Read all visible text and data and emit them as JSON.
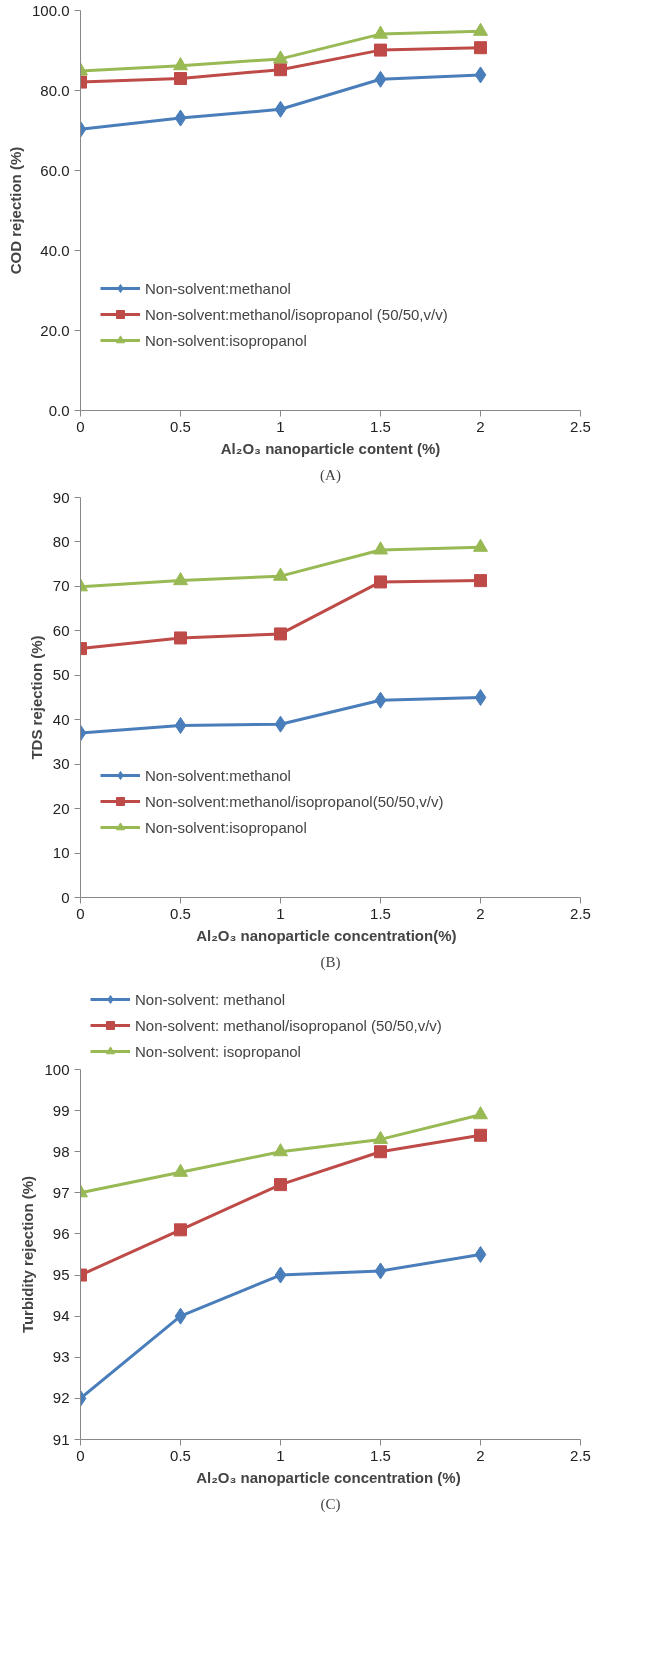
{
  "chart_data": [
    {
      "type": "line",
      "ylabel": "COD rejection (%)",
      "xlabel": "Al₂O₃ nanoparticle content (%)",
      "annotations": [
        "(A)"
      ],
      "x": [
        0,
        0.5,
        1,
        1.5,
        2
      ],
      "xlim": [
        0,
        2.5
      ],
      "xticks": [
        0,
        0.5,
        1,
        1.5,
        2,
        2.5
      ],
      "ylim": [
        0,
        100
      ],
      "yticks": [
        {
          "value": 0,
          "label": "0.0"
        },
        {
          "value": 20,
          "label": "20.0"
        },
        {
          "value": 40,
          "label": "40.0"
        },
        {
          "value": 60,
          "label": "60.0"
        },
        {
          "value": 80,
          "label": "80.0"
        },
        {
          "value": 100,
          "label": "100.0"
        }
      ],
      "grid": false,
      "legend": "bottom left",
      "line_style": "solid",
      "series": [
        {
          "name": "Non-solvent:methanol",
          "color": "#4a7ebb",
          "marker": "diamond",
          "values": [
            70.3,
            73.1,
            75.3,
            82.8,
            83.9
          ]
        },
        {
          "name": "Non-solvent:methanol/isopropanol (50/50,v/v)",
          "color": "#be4b48",
          "marker": "square",
          "values": [
            82.1,
            83.0,
            85.2,
            90.1,
            90.7
          ]
        },
        {
          "name": "Non-solvent:isopropanol",
          "color": "#98b954",
          "marker": "triangle",
          "values": [
            84.9,
            86.2,
            87.9,
            94.1,
            94.8
          ]
        }
      ]
    },
    {
      "type": "line",
      "ylabel": "TDS rejection (%)",
      "xlabel": "Al₂O₃   nanoparticle concentration(%)",
      "annotations": [
        "(B)"
      ],
      "x": [
        0,
        0.5,
        1,
        1.5,
        2
      ],
      "xlim": [
        0,
        2.5
      ],
      "xticks": [
        0,
        0.5,
        1,
        1.5,
        2,
        2.5
      ],
      "ylim": [
        0,
        90
      ],
      "yticks": [
        0,
        10,
        20,
        30,
        40,
        50,
        60,
        70,
        80,
        90
      ],
      "grid": false,
      "legend": "bottom left",
      "line_style": "solid",
      "series": [
        {
          "name": "Non-solvent:methanol",
          "color": "#4a7ebb",
          "marker": "diamond",
          "values": [
            37.0,
            38.7,
            39.0,
            44.4,
            45.0
          ]
        },
        {
          "name": "Non-solvent:methanol/isopropanol(50/50,v/v)",
          "color": "#be4b48",
          "marker": "square",
          "values": [
            56.0,
            58.4,
            59.3,
            71.0,
            71.3
          ]
        },
        {
          "name": "Non-solvent:isopropanol",
          "color": "#98b954",
          "marker": "triangle",
          "values": [
            69.9,
            71.3,
            72.3,
            78.2,
            78.8
          ]
        }
      ]
    },
    {
      "type": "line",
      "ylabel": "Turbidity rejection (%)",
      "xlabel": "Al₂O₃  nanoparticle concentration (%)",
      "annotations": [
        "(C)"
      ],
      "x": [
        0,
        0.5,
        1,
        1.5,
        2
      ],
      "xlim": [
        0,
        2.5
      ],
      "xticks": [
        0,
        0.5,
        1,
        1.5,
        2,
        2.5
      ],
      "ylim": [
        91,
        100
      ],
      "yticks": [
        91,
        92,
        93,
        94,
        95,
        96,
        97,
        98,
        99,
        100
      ],
      "grid": false,
      "legend": "top left",
      "line_style": "solid",
      "series": [
        {
          "name": "Non-solvent: methanol",
          "color": "#4a7ebb",
          "marker": "diamond",
          "values": [
            92.0,
            94.0,
            95.0,
            95.1,
            95.5
          ]
        },
        {
          "name": "Non-solvent: methanol/isopropanol (50/50,v/v)",
          "color": "#be4b48",
          "marker": "square",
          "values": [
            95.0,
            96.1,
            97.2,
            98.0,
            98.4
          ]
        },
        {
          "name": "Non-solvent: isopropanol",
          "color": "#98b954",
          "marker": "triangle",
          "values": [
            97.0,
            97.5,
            98.0,
            98.3,
            98.9
          ]
        }
      ]
    }
  ]
}
